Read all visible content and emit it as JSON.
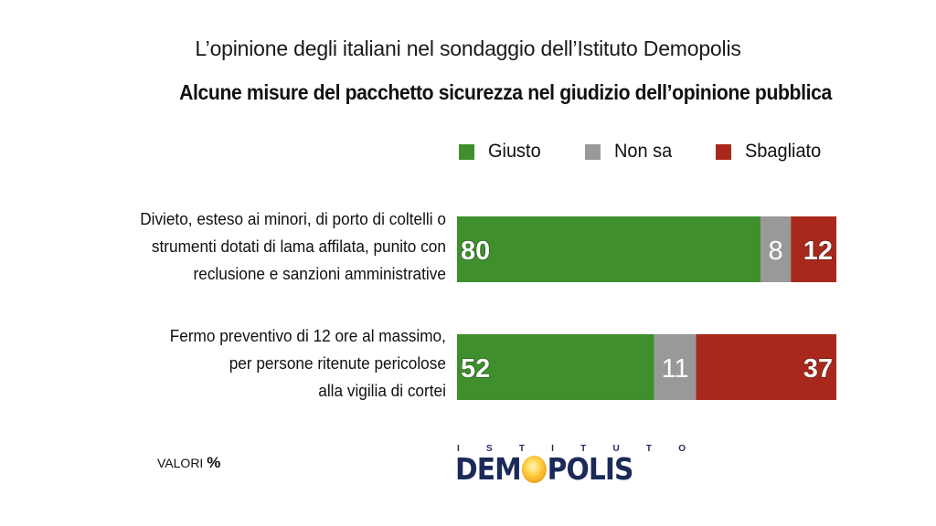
{
  "title": "L’opinione degli italiani nel sondaggio dell’Istituto Demopolis",
  "subtitle": "Alcune misure del pacchetto sicurezza nel giudizio dell’opinione pubblica",
  "footer": {
    "valori_label": "VALORI",
    "percent_symbol": "%"
  },
  "logo": {
    "top_letters": [
      "I",
      "S",
      "T",
      "I",
      "T",
      "U",
      "T",
      "O"
    ],
    "main_before_o": "DEM",
    "main_after_o": "POLIS"
  },
  "colors": {
    "giusto": "#3f8f2c",
    "non_sa": "#999999",
    "sbagliato": "#a8291c"
  },
  "chart_data": {
    "type": "bar",
    "orientation": "horizontal",
    "stacked": true,
    "title": "Alcune misure del pacchetto sicurezza nel giudizio dell’opinione pubblica",
    "unit": "%",
    "xlim": [
      0,
      100
    ],
    "legend": [
      "Giusto",
      "Non sa",
      "Sbagliato"
    ],
    "legend_position": "top-right",
    "categories": [
      [
        "Divieto, esteso ai minori, di porto di coltelli o",
        "strumenti dotati di lama affilata, punito con",
        "reclusione e sanzioni amministrative"
      ],
      [
        "Fermo preventivo di 12 ore al massimo,",
        "per persone ritenute pericolose",
        "alla vigilia di cortei"
      ]
    ],
    "series": [
      {
        "name": "Giusto",
        "values": [
          80,
          52
        ]
      },
      {
        "name": "Non sa",
        "values": [
          8,
          11
        ]
      },
      {
        "name": "Sbagliato",
        "values": [
          12,
          37
        ]
      }
    ]
  }
}
